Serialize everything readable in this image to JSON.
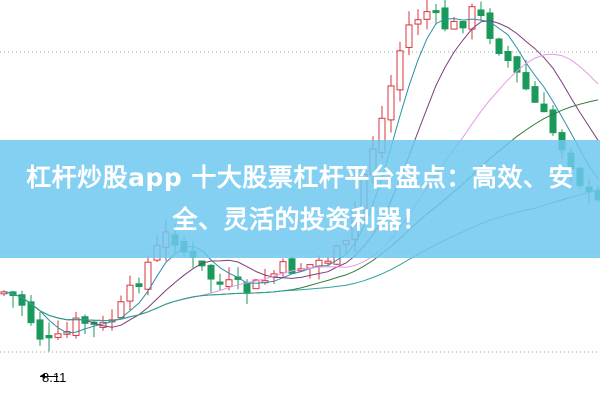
{
  "article": {
    "title": "杠杆炒股app 十大股票杠杆平台盘点：高效、安全、灵活的投资利器！"
  },
  "chart_annotation": {
    "low_price_label": "8.11"
  },
  "colors": {
    "banner": "#6ec8f0",
    "up_candle": "#d9343b",
    "down_candle": "#1a9a5a",
    "grid": "#9aa0a6"
  }
}
